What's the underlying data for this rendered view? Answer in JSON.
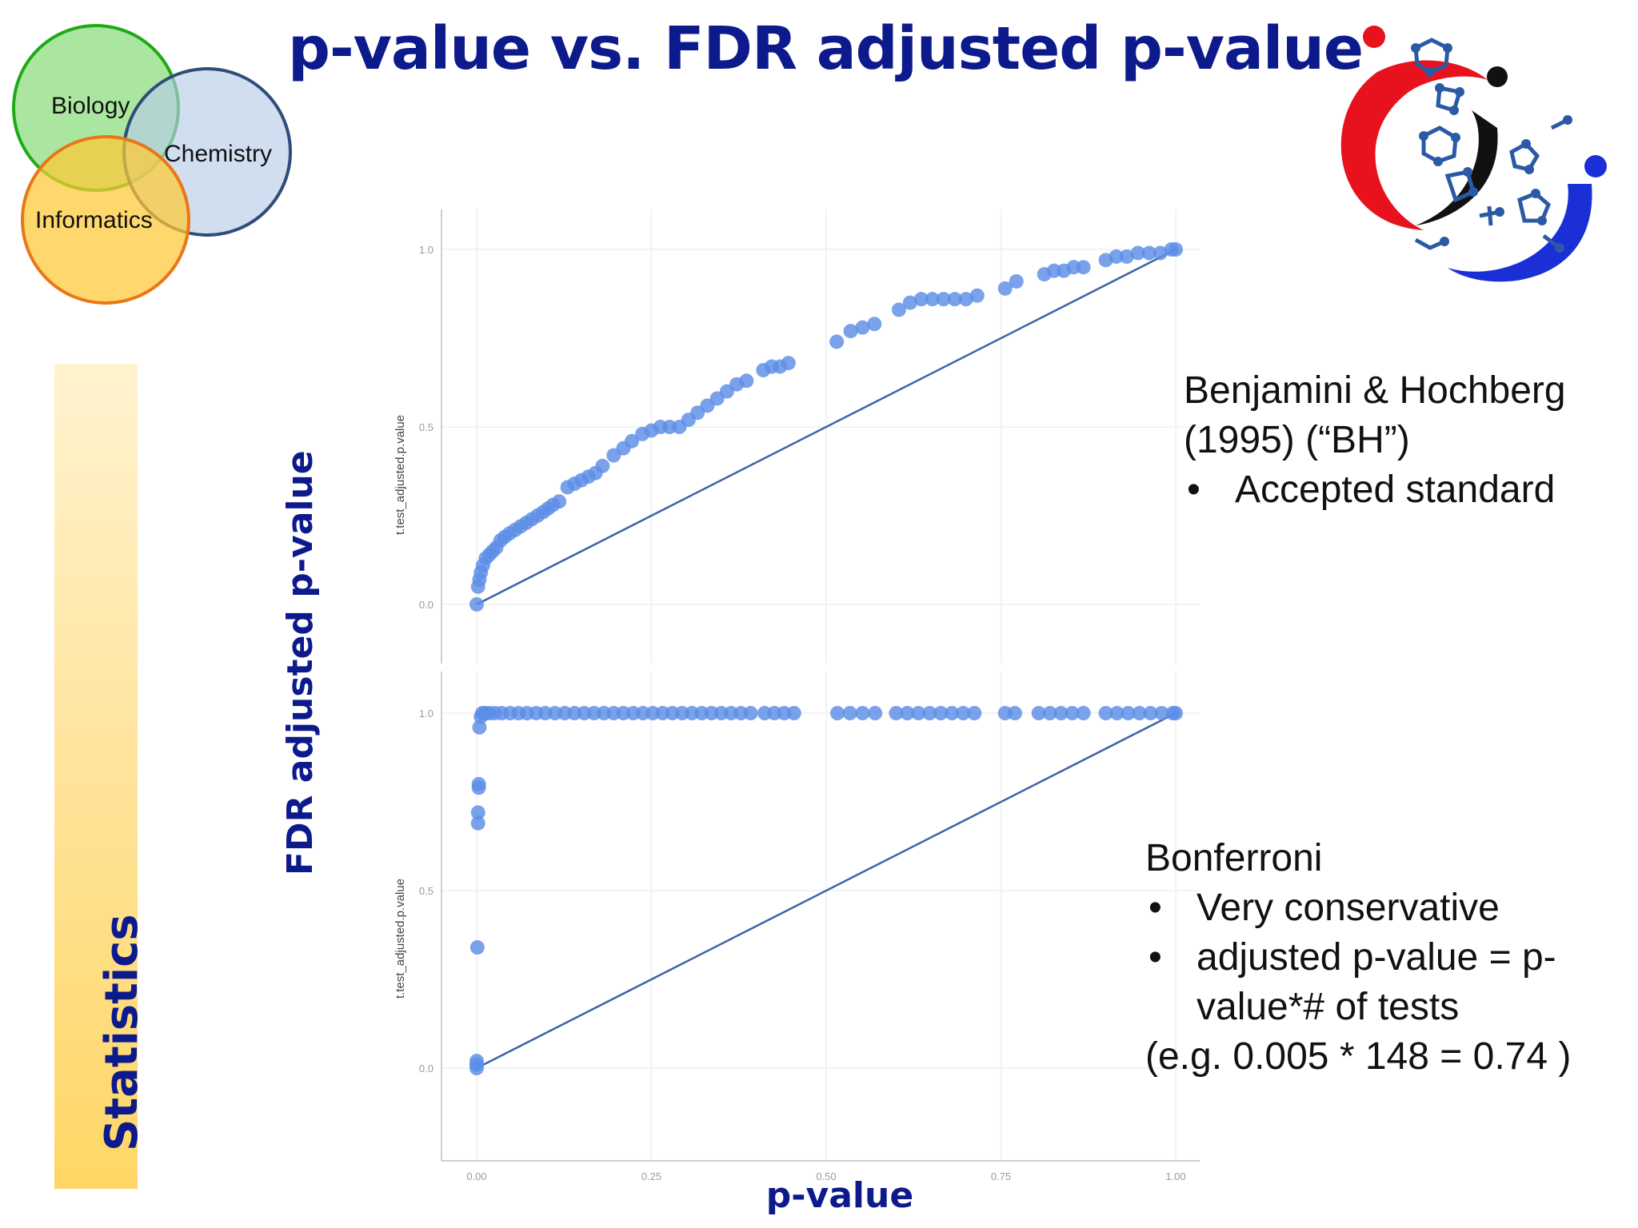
{
  "slide": {
    "title": "p-value vs. FDR adjusted p-value",
    "section_label": "Statistics",
    "y_title": "FDR adjusted p-value",
    "x_title": "p-value"
  },
  "venn": [
    "Biology",
    "Chemistry",
    "Informatics"
  ],
  "notes": {
    "bh": {
      "line1": "Benjamini & Hochberg",
      "line2": "(1995) (“BH”)",
      "bullet1": "Accepted standard"
    },
    "bonferroni": {
      "title": "Bonferroni",
      "bullet1": "Very conservative",
      "bullet2": "adjusted p-value = p-value*# of tests",
      "example": "(e.g. 0.005 * 148 = 0.74 )"
    }
  },
  "colors": {
    "title": "#0d1a8c",
    "points": "#5b8ee6",
    "line": "#3a64a8",
    "logo_red": "#e8121f",
    "logo_blue": "#1a2fd6",
    "logo_molecule": "#2a5aa6"
  },
  "chart_data": [
    {
      "type": "scatter",
      "ylabel": "t.test_adjusted.p.value",
      "xlim": [
        0,
        1
      ],
      "ylim": [
        0,
        1
      ],
      "x_ticks": [
        "0.00",
        "0.25",
        "0.50",
        "0.75",
        "1.00"
      ],
      "y_ticks": [
        "0.0",
        "0.5",
        "1.0"
      ],
      "reference_line": [
        [
          0,
          0
        ],
        [
          1,
          1
        ]
      ],
      "points": [
        [
          0.0,
          0.0
        ],
        [
          0.002,
          0.05
        ],
        [
          0.004,
          0.07
        ],
        [
          0.006,
          0.09
        ],
        [
          0.009,
          0.11
        ],
        [
          0.013,
          0.13
        ],
        [
          0.018,
          0.14
        ],
        [
          0.023,
          0.15
        ],
        [
          0.028,
          0.16
        ],
        [
          0.034,
          0.18
        ],
        [
          0.04,
          0.19
        ],
        [
          0.047,
          0.2
        ],
        [
          0.055,
          0.21
        ],
        [
          0.063,
          0.22
        ],
        [
          0.071,
          0.23
        ],
        [
          0.079,
          0.24
        ],
        [
          0.087,
          0.25
        ],
        [
          0.095,
          0.26
        ],
        [
          0.102,
          0.27
        ],
        [
          0.109,
          0.28
        ],
        [
          0.118,
          0.29
        ],
        [
          0.13,
          0.33
        ],
        [
          0.14,
          0.34
        ],
        [
          0.15,
          0.35
        ],
        [
          0.16,
          0.36
        ],
        [
          0.17,
          0.37
        ],
        [
          0.18,
          0.39
        ],
        [
          0.196,
          0.42
        ],
        [
          0.21,
          0.44
        ],
        [
          0.222,
          0.46
        ],
        [
          0.237,
          0.48
        ],
        [
          0.25,
          0.49
        ],
        [
          0.263,
          0.5
        ],
        [
          0.276,
          0.5
        ],
        [
          0.29,
          0.5
        ],
        [
          0.303,
          0.52
        ],
        [
          0.316,
          0.54
        ],
        [
          0.33,
          0.56
        ],
        [
          0.344,
          0.58
        ],
        [
          0.358,
          0.6
        ],
        [
          0.372,
          0.62
        ],
        [
          0.386,
          0.63
        ],
        [
          0.41,
          0.66
        ],
        [
          0.422,
          0.67
        ],
        [
          0.434,
          0.67
        ],
        [
          0.446,
          0.68
        ],
        [
          0.515,
          0.74
        ],
        [
          0.535,
          0.77
        ],
        [
          0.552,
          0.78
        ],
        [
          0.569,
          0.79
        ],
        [
          0.604,
          0.83
        ],
        [
          0.62,
          0.85
        ],
        [
          0.636,
          0.86
        ],
        [
          0.652,
          0.86
        ],
        [
          0.668,
          0.86
        ],
        [
          0.684,
          0.86
        ],
        [
          0.7,
          0.86
        ],
        [
          0.716,
          0.87
        ],
        [
          0.756,
          0.89
        ],
        [
          0.772,
          0.91
        ],
        [
          0.812,
          0.93
        ],
        [
          0.826,
          0.94
        ],
        [
          0.84,
          0.94
        ],
        [
          0.854,
          0.95
        ],
        [
          0.868,
          0.95
        ],
        [
          0.9,
          0.97
        ],
        [
          0.915,
          0.98
        ],
        [
          0.93,
          0.98
        ],
        [
          0.946,
          0.99
        ],
        [
          0.962,
          0.99
        ],
        [
          0.978,
          0.99
        ],
        [
          0.994,
          1.0
        ],
        [
          1.0,
          1.0
        ]
      ]
    },
    {
      "type": "scatter",
      "ylabel": "t.test_adjusted.p.value",
      "xlim": [
        0,
        1
      ],
      "ylim": [
        0,
        1
      ],
      "x_ticks": [
        "0.00",
        "0.25",
        "0.50",
        "0.75",
        "1.00"
      ],
      "y_ticks": [
        "0.0",
        "0.5",
        "1.0"
      ],
      "reference_line": [
        [
          0,
          0
        ],
        [
          1,
          1
        ]
      ],
      "points": [
        [
          0.0,
          0.0
        ],
        [
          0.0,
          0.01
        ],
        [
          0.0,
          0.02
        ],
        [
          0.001,
          0.34
        ],
        [
          0.002,
          0.69
        ],
        [
          0.002,
          0.72
        ],
        [
          0.003,
          0.79
        ],
        [
          0.003,
          0.8
        ],
        [
          0.004,
          0.96
        ],
        [
          0.006,
          0.99
        ],
        [
          0.008,
          1.0
        ],
        [
          0.012,
          1.0
        ],
        [
          0.018,
          1.0
        ],
        [
          0.026,
          1.0
        ],
        [
          0.036,
          1.0
        ],
        [
          0.048,
          1.0
        ],
        [
          0.06,
          1.0
        ],
        [
          0.072,
          1.0
        ],
        [
          0.085,
          1.0
        ],
        [
          0.098,
          1.0
        ],
        [
          0.112,
          1.0
        ],
        [
          0.126,
          1.0
        ],
        [
          0.14,
          1.0
        ],
        [
          0.154,
          1.0
        ],
        [
          0.168,
          1.0
        ],
        [
          0.182,
          1.0
        ],
        [
          0.196,
          1.0
        ],
        [
          0.21,
          1.0
        ],
        [
          0.224,
          1.0
        ],
        [
          0.238,
          1.0
        ],
        [
          0.252,
          1.0
        ],
        [
          0.266,
          1.0
        ],
        [
          0.28,
          1.0
        ],
        [
          0.294,
          1.0
        ],
        [
          0.308,
          1.0
        ],
        [
          0.322,
          1.0
        ],
        [
          0.336,
          1.0
        ],
        [
          0.35,
          1.0
        ],
        [
          0.364,
          1.0
        ],
        [
          0.378,
          1.0
        ],
        [
          0.392,
          1.0
        ],
        [
          0.412,
          1.0
        ],
        [
          0.426,
          1.0
        ],
        [
          0.44,
          1.0
        ],
        [
          0.454,
          1.0
        ],
        [
          0.516,
          1.0
        ],
        [
          0.534,
          1.0
        ],
        [
          0.552,
          1.0
        ],
        [
          0.57,
          1.0
        ],
        [
          0.6,
          1.0
        ],
        [
          0.616,
          1.0
        ],
        [
          0.632,
          1.0
        ],
        [
          0.648,
          1.0
        ],
        [
          0.664,
          1.0
        ],
        [
          0.68,
          1.0
        ],
        [
          0.696,
          1.0
        ],
        [
          0.712,
          1.0
        ],
        [
          0.756,
          1.0
        ],
        [
          0.77,
          1.0
        ],
        [
          0.804,
          1.0
        ],
        [
          0.82,
          1.0
        ],
        [
          0.836,
          1.0
        ],
        [
          0.852,
          1.0
        ],
        [
          0.868,
          1.0
        ],
        [
          0.9,
          1.0
        ],
        [
          0.916,
          1.0
        ],
        [
          0.932,
          1.0
        ],
        [
          0.948,
          1.0
        ],
        [
          0.964,
          1.0
        ],
        [
          0.98,
          1.0
        ],
        [
          0.996,
          1.0
        ],
        [
          1.0,
          1.0
        ]
      ]
    }
  ]
}
